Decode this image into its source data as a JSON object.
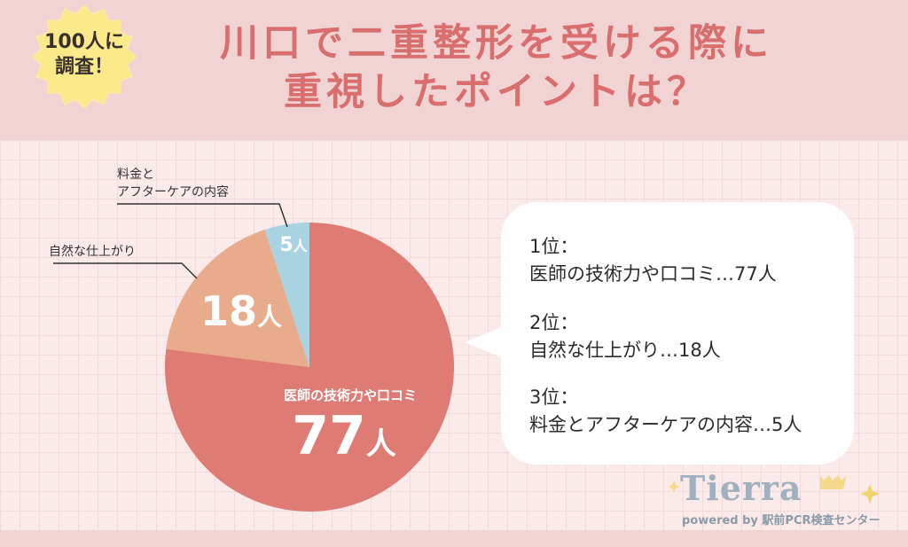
{
  "badge": {
    "line1": "100人に",
    "line2": "調査！"
  },
  "title": {
    "line1": "川口で二重整形を受ける際に",
    "line2": "重視したポイントは？"
  },
  "chart_data": {
    "type": "pie",
    "title": "",
    "unit": "人",
    "slices": [
      {
        "label": "医師の技術力や口コミ",
        "value": 77,
        "value_text": "77",
        "color": "#dd7b74"
      },
      {
        "label": "自然な仕上がり",
        "value": 18,
        "value_text": "18",
        "color": "#e8ab8c"
      },
      {
        "label": "料金とアフターケアの内容",
        "value": 5,
        "value_text": "5",
        "color": "#a9d3e1"
      }
    ]
  },
  "labels": {
    "slice1_inner": "医師の技術力や口コミ",
    "slice2_outer": "自然な仕上がり",
    "slice3_outer_line1": "料金と",
    "slice3_outer_line2": "アフターケアの内容"
  },
  "ranking": [
    {
      "rank": "1位：",
      "text": "医師の技術力や口コミ…77人"
    },
    {
      "rank": "2位：",
      "text": "自然な仕上がり…18人"
    },
    {
      "rank": "3位：",
      "text": "料金とアフターケアの内容…5人"
    }
  ],
  "logo": {
    "word": "Tierra",
    "sub": "powered by 駅前PCR検査センター"
  }
}
